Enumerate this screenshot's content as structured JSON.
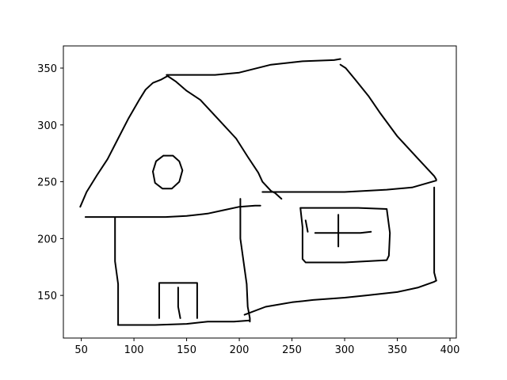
{
  "chart_data": {
    "type": "line",
    "title": "",
    "xlabel": "",
    "ylabel": "",
    "xlim": [
      33,
      406
    ],
    "ylim": [
      112.5,
      369.5
    ],
    "xticks": [
      50,
      100,
      150,
      200,
      250,
      300,
      350,
      400
    ],
    "yticks": [
      150,
      200,
      250,
      300,
      350
    ],
    "grid": false,
    "legend": "none",
    "line_color": "#000000",
    "series": [
      {
        "id": "roof-left-slope",
        "points": [
          [
            49,
            228
          ],
          [
            55,
            241
          ],
          [
            65,
            256
          ],
          [
            75,
            270
          ],
          [
            85,
            288
          ],
          [
            95,
            306
          ],
          [
            105,
            322
          ],
          [
            111,
            331
          ],
          [
            118,
            337
          ],
          [
            126,
            340
          ],
          [
            132,
            343
          ]
        ]
      },
      {
        "id": "roof-right-slope",
        "points": [
          [
            132,
            343
          ],
          [
            140,
            338
          ],
          [
            150,
            330
          ],
          [
            163,
            322
          ],
          [
            180,
            305
          ],
          [
            197,
            288
          ],
          [
            208,
            272
          ],
          [
            218,
            258
          ],
          [
            222,
            250
          ],
          [
            230,
            242
          ],
          [
            234,
            240
          ],
          [
            240,
            235
          ]
        ]
      },
      {
        "id": "ridge-line",
        "points": [
          [
            131,
            344
          ],
          [
            177,
            344
          ],
          [
            200,
            346
          ],
          [
            230,
            353
          ],
          [
            260,
            356
          ],
          [
            290,
            357
          ],
          [
            296,
            358
          ]
        ]
      },
      {
        "id": "roof-back-slope",
        "points": [
          [
            296,
            353
          ],
          [
            301,
            350
          ],
          [
            310,
            340
          ],
          [
            323,
            325
          ],
          [
            334,
            310
          ],
          [
            350,
            290
          ],
          [
            370,
            270
          ],
          [
            385,
            255
          ],
          [
            387,
            252
          ]
        ]
      },
      {
        "id": "eave-right",
        "points": [
          [
            222,
            241
          ],
          [
            300,
            241
          ],
          [
            340,
            243
          ],
          [
            364,
            245
          ],
          [
            387,
            251
          ]
        ]
      },
      {
        "id": "eave-left",
        "points": [
          [
            54,
            219
          ],
          [
            130,
            219
          ],
          [
            150,
            220
          ],
          [
            170,
            222
          ],
          [
            185,
            225
          ],
          [
            200,
            228
          ],
          [
            215,
            229
          ],
          [
            220,
            229
          ]
        ]
      },
      {
        "id": "front-left-wall",
        "points": [
          [
            82,
            218
          ],
          [
            82,
            180
          ],
          [
            85,
            160
          ],
          [
            85,
            140
          ],
          [
            85,
            124
          ]
        ]
      },
      {
        "id": "front-floor",
        "points": [
          [
            85,
            124
          ],
          [
            120,
            124
          ],
          [
            150,
            125
          ],
          [
            170,
            127
          ],
          [
            195,
            127
          ],
          [
            210,
            128
          ]
        ]
      },
      {
        "id": "front-right-wall",
        "points": [
          [
            201,
            235
          ],
          [
            201,
            200
          ],
          [
            204,
            180
          ],
          [
            207,
            160
          ],
          [
            208,
            140
          ],
          [
            210,
            130
          ],
          [
            210,
            127
          ]
        ]
      },
      {
        "id": "side-base",
        "points": [
          [
            205,
            133
          ],
          [
            225,
            140
          ],
          [
            250,
            144
          ],
          [
            270,
            146
          ],
          [
            300,
            148
          ],
          [
            320,
            150
          ],
          [
            350,
            153
          ],
          [
            370,
            157
          ],
          [
            385,
            162
          ],
          [
            387,
            163
          ]
        ]
      },
      {
        "id": "side-right-wall",
        "points": [
          [
            385,
            245
          ],
          [
            385,
            200
          ],
          [
            385,
            170
          ],
          [
            387,
            163
          ]
        ]
      },
      {
        "id": "door-frame",
        "points": [
          [
            124,
            130
          ],
          [
            124,
            161
          ],
          [
            160,
            161
          ],
          [
            160,
            130
          ]
        ]
      },
      {
        "id": "door-handle",
        "points": [
          [
            142,
            157
          ],
          [
            142,
            140
          ],
          [
            144,
            130
          ]
        ]
      },
      {
        "id": "round-window",
        "points": [
          [
            128,
            273
          ],
          [
            137,
            273
          ],
          [
            143,
            268
          ],
          [
            146,
            260
          ],
          [
            143,
            250
          ],
          [
            136,
            244
          ],
          [
            127,
            244
          ],
          [
            120,
            249
          ],
          [
            118,
            259
          ],
          [
            121,
            268
          ],
          [
            128,
            273
          ]
        ]
      },
      {
        "id": "side-window",
        "points": [
          [
            258,
            227
          ],
          [
            285,
            227
          ],
          [
            313,
            227
          ],
          [
            340,
            226
          ],
          [
            343,
            205
          ],
          [
            342,
            185
          ],
          [
            340,
            181
          ],
          [
            300,
            179
          ],
          [
            263,
            179
          ],
          [
            260,
            182
          ],
          [
            260,
            210
          ],
          [
            258,
            227
          ]
        ]
      },
      {
        "id": "window-bar-horizontal",
        "points": [
          [
            272,
            205
          ],
          [
            315,
            205
          ],
          [
            325,
            206
          ]
        ]
      },
      {
        "id": "window-bar-vertical",
        "points": [
          [
            294,
            221
          ],
          [
            294,
            193
          ]
        ]
      },
      {
        "id": "window-slant",
        "points": [
          [
            263,
            216
          ],
          [
            265,
            206
          ]
        ]
      }
    ]
  }
}
